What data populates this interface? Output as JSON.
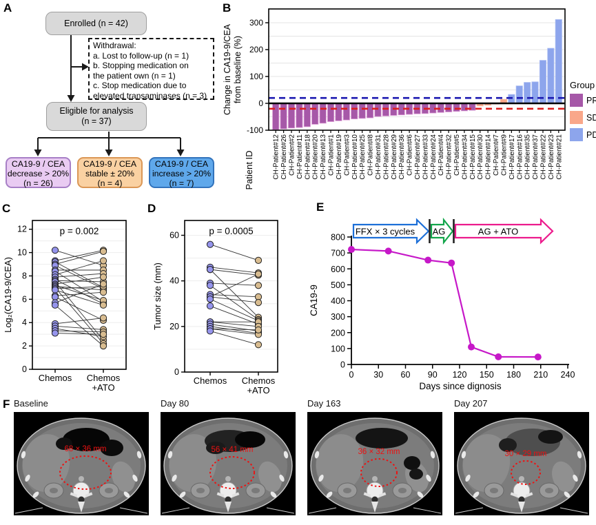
{
  "labels": {
    "a": "A",
    "b": "B",
    "c": "C",
    "d": "D",
    "e": "E",
    "f": "F"
  },
  "panel_a": {
    "enrolled": "Enrolled (n = 42)",
    "withdrawal_lines": [
      "Withdrawal:",
      "a. Lost to follow-up (n = 1)",
      "b. Stopping medication on",
      "the patient own (n = 1)",
      "c. Stop medication due to",
      "elevated transaminases (n = 3)"
    ],
    "eligible_lines": [
      "Eligible for analysis",
      "(n = 37)"
    ],
    "outcomes": [
      {
        "lines": [
          "CA19-9 / CEA",
          "decrease > 20%",
          "(n = 26)"
        ],
        "fill": "#E9CBF2",
        "border": "#A77FC6"
      },
      {
        "lines": [
          "CA19-9 / CEA",
          "stable ± 20%",
          "(n = 4)"
        ],
        "fill": "#FAD1A2",
        "border": "#DB9756"
      },
      {
        "lines": [
          "CA19-9 / CEA",
          "increase > 20%",
          "(n = 7)"
        ],
        "fill": "#5FA8EB",
        "border": "#3273BC"
      }
    ]
  },
  "chart_data": [
    {
      "panel": "B",
      "type": "bar",
      "subtype": "waterfall",
      "ylabel_lines": [
        "Change in CA19-9/CEA",
        "from baseline (%)"
      ],
      "xlabel": "Patient ID",
      "yticks": [
        -100,
        0,
        100,
        200,
        300
      ],
      "ylim": [
        -100,
        350
      ],
      "grid_step": 50,
      "ref_lines": [
        {
          "y": 20,
          "color": "#1A17B0",
          "style": "dashed"
        },
        {
          "y": -20,
          "color": "#DC1F1F",
          "style": "dashed"
        },
        {
          "y": 0,
          "color": "#000000",
          "style": "solid"
        }
      ],
      "legend": {
        "title": "Group",
        "entries": [
          {
            "label": "PR",
            "color": "#A658A8",
            "edge": "#DC9CD6"
          },
          {
            "label": "SD",
            "color": "#F9A78A",
            "edge": "#F3BCA2"
          },
          {
            "label": "PD",
            "color": "#8DA5EC",
            "edge": "#AABCF2"
          }
        ]
      },
      "categories": [
        "CH-Patient#12",
        "CH-Patient#26",
        "CH-Patient#2",
        "CH-Patient#11",
        "CH-Patient#18",
        "CH-Patient#20",
        "CH-Patient#13",
        "CH-Patient#1",
        "CH-Patient#19",
        "CH-Patient#3",
        "CH-Patient#10",
        "CH-Patient#25",
        "CH-Patient#8",
        "CH-Patient#31",
        "CH-Patient#28",
        "CH-Patient#29",
        "CH-Patient#36",
        "CH-Patient#6",
        "CH-Patient#27",
        "CH-Patient#33",
        "CH-Patient#24",
        "CH-Patient#4",
        "CH-Patient#32",
        "CH-Patient#5",
        "CH-Patient#34",
        "CH-Patient#15",
        "CH-Patient#30",
        "CH-Patient#14",
        "CH-Patient#7",
        "CH-Patient#9",
        "CH-Patient#17",
        "CH-Patient#16",
        "CH-Patient#35",
        "CH-Patient#37",
        "CH-Patient#22",
        "CH-Patient#23",
        "CH-Patient#21"
      ],
      "values": [
        -98,
        -95,
        -92,
        -90,
        -87,
        -78,
        -74,
        -68,
        -65,
        -62,
        -58,
        -56,
        -54,
        -49,
        -47,
        -45,
        -43,
        -41,
        -39,
        -38,
        -36,
        -34,
        -32,
        -30,
        -28,
        -26,
        -10,
        -7,
        -3,
        15,
        33,
        65,
        78,
        80,
        160,
        205,
        312
      ],
      "groups": [
        "PR",
        "PR",
        "PR",
        "PR",
        "PR",
        "PR",
        "PR",
        "PR",
        "PR",
        "PR",
        "PR",
        "PR",
        "PR",
        "PR",
        "PR",
        "PR",
        "PR",
        "PR",
        "PR",
        "PR",
        "PR",
        "PR",
        "PR",
        "PR",
        "PR",
        "PR",
        "SD",
        "SD",
        "SD",
        "SD",
        "PD",
        "PD",
        "PD",
        "PD",
        "PD",
        "PD",
        "PD"
      ]
    },
    {
      "panel": "C",
      "type": "scatter",
      "subtype": "paired",
      "p_label": "p = 0.002",
      "ylabel": "Log₂(CA19-9/CEA)",
      "yticks": [
        0,
        2,
        4,
        6,
        8,
        10,
        12
      ],
      "ylim": [
        0,
        12.75
      ],
      "grid_step": 1,
      "categories": [
        "Chemos",
        "Chemos\n+ATO"
      ],
      "colors": {
        "left": "#9594EC",
        "right": "#D8BC90",
        "line": "#333333"
      },
      "pairs": [
        [
          10.2,
          8.9
        ],
        [
          9.3,
          10.2
        ],
        [
          9.2,
          7.0
        ],
        [
          9.0,
          10.1
        ],
        [
          8.9,
          6.9
        ],
        [
          8.5,
          8.5
        ],
        [
          8.4,
          5.8
        ],
        [
          8.1,
          9.3
        ],
        [
          7.9,
          8.2
        ],
        [
          7.7,
          5.6
        ],
        [
          7.6,
          7.5
        ],
        [
          7.5,
          2.5
        ],
        [
          7.3,
          7.9
        ],
        [
          7.2,
          5.9
        ],
        [
          7.1,
          6.8
        ],
        [
          7.0,
          2.2
        ],
        [
          6.9,
          7.1
        ],
        [
          6.8,
          5.5
        ],
        [
          6.3,
          6.6
        ],
        [
          6.2,
          4.2
        ],
        [
          5.7,
          7.3
        ],
        [
          5.5,
          2.0
        ],
        [
          3.9,
          4.4
        ],
        [
          3.7,
          3.4
        ],
        [
          3.5,
          2.8
        ],
        [
          3.3,
          3.2
        ],
        [
          3.1,
          3.0
        ]
      ]
    },
    {
      "panel": "D",
      "type": "scatter",
      "subtype": "paired",
      "p_label": "p = 0.0005",
      "ylabel": "Tumor size (mm)",
      "yticks": [
        0,
        20,
        40,
        60
      ],
      "ylim": [
        0,
        66.5
      ],
      "grid_step": 10,
      "categories": [
        "Chemos",
        "Chemos\n+ATO"
      ],
      "colors": {
        "left": "#9594EC",
        "right": "#D8BC90",
        "line": "#333333"
      },
      "pairs": [
        [
          56,
          49
        ],
        [
          46,
          43.5
        ],
        [
          45,
          42.5
        ],
        [
          45,
          24
        ],
        [
          39,
          38
        ],
        [
          38,
          23
        ],
        [
          34,
          33
        ],
        [
          33,
          43
        ],
        [
          33,
          30.5
        ],
        [
          32,
          22.5
        ],
        [
          29,
          21
        ],
        [
          22,
          22
        ],
        [
          22,
          20
        ],
        [
          21,
          18
        ],
        [
          20,
          17
        ],
        [
          19,
          16.5
        ],
        [
          19,
          18.5
        ],
        [
          18,
          12
        ]
      ]
    },
    {
      "panel": "E",
      "type": "line",
      "ylabel": "CA19-9",
      "xlabel": "Days since dignosis",
      "yticks": [
        0,
        100,
        200,
        300,
        400,
        500,
        600,
        700,
        800
      ],
      "xticks": [
        0,
        30,
        60,
        90,
        120,
        150,
        180,
        210,
        240
      ],
      "ylim": [
        0,
        800
      ],
      "xlim": [
        0,
        240
      ],
      "color": "#C618C8",
      "x": [
        0,
        41,
        85,
        111,
        133,
        163,
        207
      ],
      "y": [
        722,
        712,
        655,
        637,
        110,
        48,
        47
      ],
      "treatment_arrows": [
        {
          "label": "FFX × 3 cycles",
          "color": "#1C6FD8"
        },
        {
          "label": "AG",
          "color": "#12A54A"
        },
        {
          "label": "AG + ATO",
          "color": "#EC1A8C"
        }
      ]
    }
  ],
  "panel_f": {
    "annotation_color": "#EE1111",
    "scans": [
      {
        "label": "Baseline",
        "measurement": "68 × 36 mm"
      },
      {
        "label": "Day 80",
        "measurement": "56 × 41 mm"
      },
      {
        "label": "Day 163",
        "measurement": "36 × 32 mm"
      },
      {
        "label": "Day 207",
        "measurement": "30 × 29 mm"
      }
    ]
  }
}
